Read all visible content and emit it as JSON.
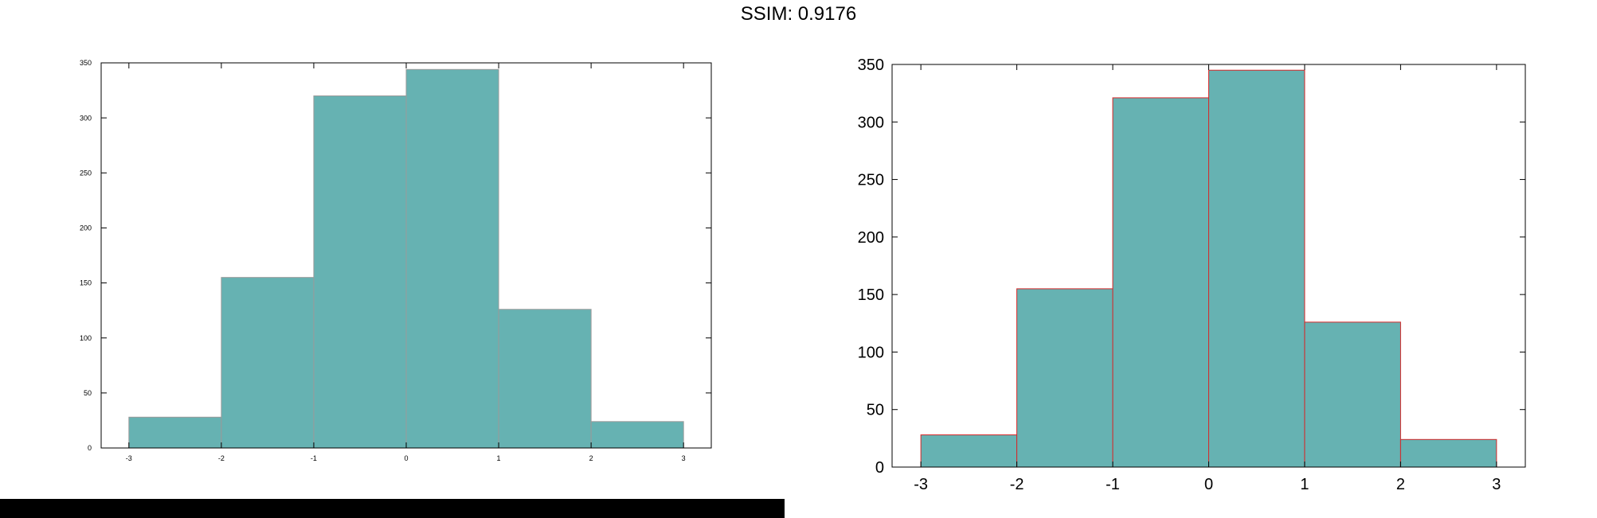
{
  "page": {
    "title": "SSIM: 0.9176"
  },
  "colors": {
    "bar_fill": "#66b2b2",
    "left_bar_edge": "#9a9a9a",
    "right_bar_edge": "#d62728",
    "axis": "#000000",
    "background": "#ffffff"
  },
  "chart_data": [
    {
      "type": "bar",
      "bin_edges": [
        -3,
        -2,
        -1,
        0,
        1,
        2,
        3
      ],
      "values": [
        28,
        155,
        320,
        344,
        126,
        24
      ],
      "xticks": [
        -3,
        -2,
        -1,
        0,
        1,
        2,
        3
      ],
      "xtick_labels": [
        "-3",
        "-2",
        "-1",
        "0",
        "1",
        "2",
        "3"
      ],
      "yticks": [
        0,
        50,
        100,
        150,
        200,
        250,
        300,
        350
      ],
      "ytick_labels": [
        "0",
        "50",
        "100",
        "150",
        "200",
        "250",
        "300",
        "350"
      ],
      "xlim": [
        -3.3,
        3.3
      ],
      "ylim": [
        0,
        350
      ],
      "grid": false
    },
    {
      "type": "bar",
      "bin_edges": [
        -3,
        -2,
        -1,
        0,
        1,
        2,
        3
      ],
      "values": [
        28,
        155,
        321,
        345,
        126,
        24
      ],
      "xticks": [
        -3,
        -2,
        -1,
        0,
        1,
        2,
        3
      ],
      "xtick_labels": [
        "-3",
        "-2",
        "-1",
        "0",
        "1",
        "2",
        "3"
      ],
      "yticks": [
        0,
        50,
        100,
        150,
        200,
        250,
        300,
        350
      ],
      "ytick_labels": [
        "0",
        "50",
        "100",
        "150",
        "200",
        "250",
        "300",
        "350"
      ],
      "xlim": [
        -3.3,
        3.3
      ],
      "ylim": [
        0,
        350
      ],
      "grid": false
    }
  ]
}
